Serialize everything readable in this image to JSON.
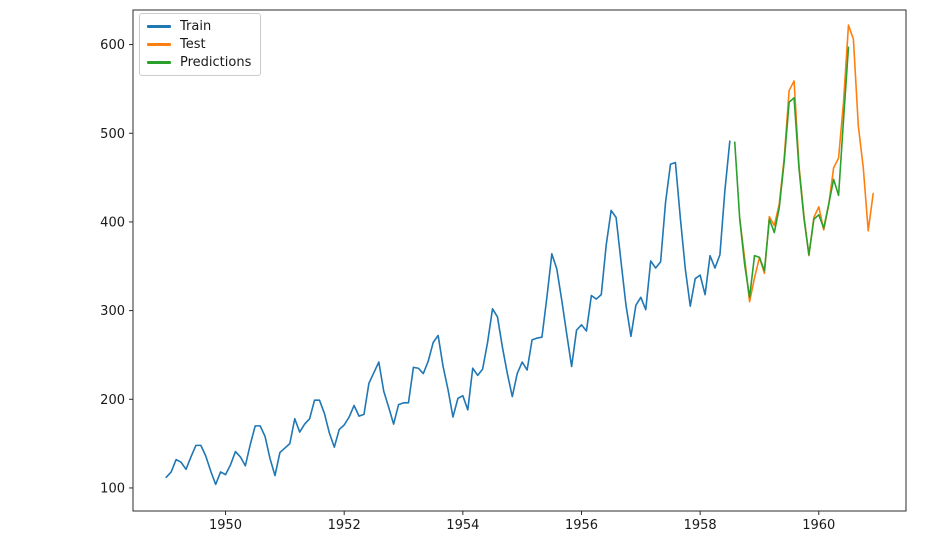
{
  "figure": {
    "background": "#ffffff",
    "frame_color": "#2b2b2b",
    "tick_color": "#2b2b2b",
    "text_color": "#1a1a1a"
  },
  "chart_data": {
    "type": "line",
    "title": "",
    "xlabel": "",
    "ylabel": "",
    "grid": false,
    "legend_position": "upper-left",
    "xlim": [
      1948.44,
      1961.47
    ],
    "ylim": [
      74,
      639
    ],
    "x_ticks": [
      1950,
      1952,
      1954,
      1956,
      1958,
      1960
    ],
    "y_ticks": [
      100,
      200,
      300,
      400,
      500,
      600
    ],
    "series": [
      {
        "name": "Train",
        "color": "#1f77b4",
        "start_month": "1949-01",
        "values": [
          112,
          118,
          132,
          129,
          121,
          135,
          148,
          148,
          136,
          119,
          104,
          118,
          115,
          126,
          141,
          135,
          125,
          149,
          170,
          170,
          158,
          133,
          114,
          140,
          145,
          150,
          178,
          163,
          172,
          178,
          199,
          199,
          184,
          162,
          146,
          166,
          171,
          180,
          193,
          181,
          183,
          218,
          230,
          242,
          209,
          191,
          172,
          194,
          196,
          196,
          236,
          235,
          229,
          243,
          264,
          272,
          237,
          211,
          180,
          201,
          204,
          188,
          235,
          227,
          234,
          264,
          302,
          293,
          259,
          229,
          203,
          229,
          242,
          233,
          267,
          269,
          270,
          315,
          364,
          347,
          312,
          274,
          237,
          278,
          284,
          277,
          317,
          313,
          318,
          374,
          413,
          405,
          355,
          306,
          271,
          306,
          315,
          301,
          356,
          348,
          355,
          422,
          465,
          467,
          404,
          347,
          305,
          336,
          340,
          318,
          362,
          348,
          363,
          435,
          491
        ]
      },
      {
        "name": "Test",
        "color": "#ff7f0e",
        "start_month": "1958-09",
        "values": [
          404,
          359,
          310,
          337,
          360,
          342,
          406,
          396,
          420,
          472,
          548,
          559,
          463,
          407,
          362,
          405,
          417,
          391,
          419,
          461,
          472,
          535,
          622,
          606,
          508,
          461,
          390,
          432
        ]
      },
      {
        "name": "Predictions",
        "color": "#2ca02c",
        "start_month": "1958-08",
        "values": [
          490,
          404,
          352,
          315,
          362,
          360,
          345,
          403,
          388,
          416,
          468,
          535,
          540,
          460,
          404,
          363,
          403,
          408,
          393,
          420,
          448,
          430,
          515,
          597
        ]
      }
    ]
  }
}
